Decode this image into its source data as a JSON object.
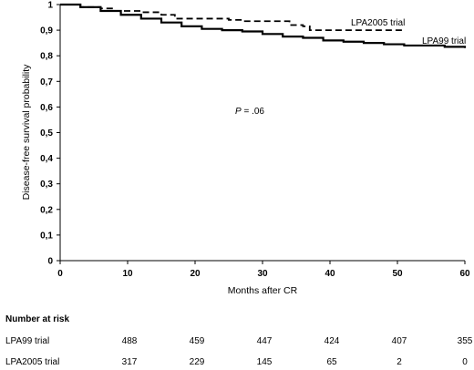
{
  "chart_data": {
    "type": "line",
    "title": "",
    "xlabel": "Months after CR",
    "ylabel": "Disease-free survival probability",
    "xlim": [
      0,
      60
    ],
    "ylim": [
      0,
      1
    ],
    "xticks": [
      0,
      10,
      20,
      30,
      40,
      50,
      60
    ],
    "yticks": [
      "0",
      "0,1",
      "0,2",
      "0,3",
      "0,4",
      "0,5",
      "0,6",
      "0,7",
      "0,8",
      "0,9",
      "1"
    ],
    "annotation": {
      "prefix": "P",
      "text": " = .06"
    },
    "series": [
      {
        "name": "LPA99 trial",
        "style": "solid",
        "points": [
          [
            0,
            1.0
          ],
          [
            3,
            0.99
          ],
          [
            6,
            0.975
          ],
          [
            9,
            0.96
          ],
          [
            12,
            0.945
          ],
          [
            15,
            0.93
          ],
          [
            18,
            0.915
          ],
          [
            21,
            0.905
          ],
          [
            24,
            0.9
          ],
          [
            27,
            0.895
          ],
          [
            30,
            0.885
          ],
          [
            33,
            0.875
          ],
          [
            36,
            0.87
          ],
          [
            39,
            0.86
          ],
          [
            42,
            0.855
          ],
          [
            45,
            0.85
          ],
          [
            48,
            0.845
          ],
          [
            51,
            0.84
          ],
          [
            54,
            0.84
          ],
          [
            57,
            0.835
          ],
          [
            60,
            0.83
          ]
        ]
      },
      {
        "name": "LPA2005 trial",
        "style": "dashed",
        "points": [
          [
            0,
            1.0
          ],
          [
            3,
            0.99
          ],
          [
            6,
            0.985
          ],
          [
            8,
            0.975
          ],
          [
            12,
            0.97
          ],
          [
            15,
            0.96
          ],
          [
            17,
            0.945
          ],
          [
            21,
            0.945
          ],
          [
            25,
            0.94
          ],
          [
            27,
            0.935
          ],
          [
            32,
            0.935
          ],
          [
            34,
            0.92
          ],
          [
            36,
            0.915
          ],
          [
            37,
            0.9
          ],
          [
            50,
            0.9
          ],
          [
            51,
            0.9
          ]
        ]
      }
    ]
  },
  "risk_table": {
    "title": "Number at risk",
    "rows": [
      {
        "label": "LPA99 trial",
        "values": [
          "488",
          "459",
          "447",
          "424",
          "407",
          "355"
        ]
      },
      {
        "label": "LPA2005 trial",
        "values": [
          "317",
          "229",
          "145",
          "65",
          "2",
          "0"
        ]
      }
    ]
  }
}
